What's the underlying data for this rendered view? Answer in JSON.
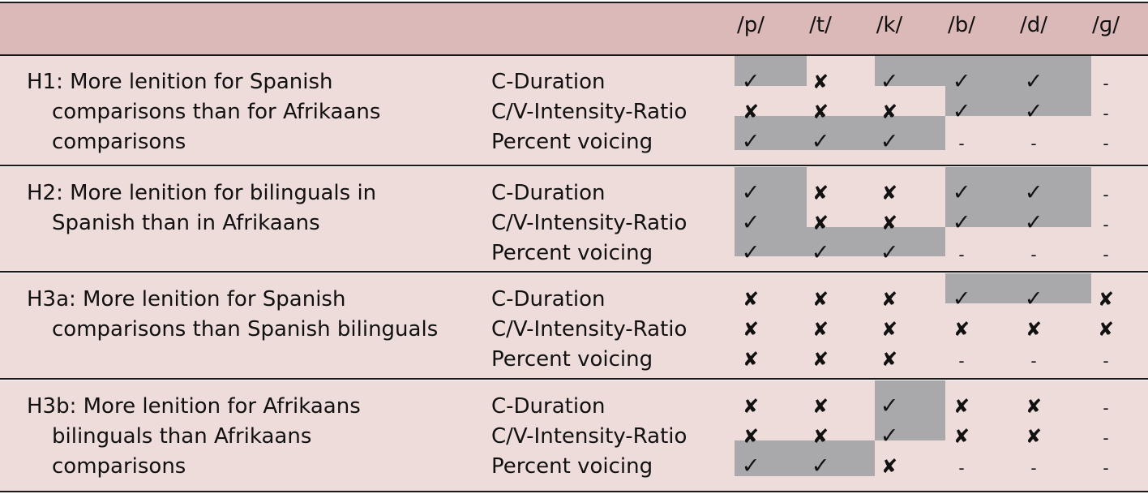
{
  "columns": [
    "/p/",
    "/t/",
    "/k/",
    "/b/",
    "/d/",
    "/ɡ/"
  ],
  "symbols": {
    "yes": "✓",
    "no": "✘",
    "na": "-"
  },
  "colors": {
    "header_bg": "#dbb9b9",
    "body_bg": "#eddcda",
    "highlight": "#a9a9ab",
    "rule": "#1a1a1a"
  },
  "groups": [
    {
      "id": "H1",
      "hypothesis_lines": [
        "H1: More lenition for Spanish",
        "comparisons than for Afrikaans",
        "comparisons"
      ],
      "rows": [
        {
          "measure": "C-Duration",
          "values": [
            "yes",
            "no",
            "yes",
            "yes",
            "yes",
            "na"
          ],
          "highlighted": [
            true,
            false,
            true,
            true,
            true,
            false
          ]
        },
        {
          "measure": "C/V-Intensity-Ratio",
          "values": [
            "no",
            "no",
            "no",
            "yes",
            "yes",
            "na"
          ],
          "highlighted": [
            false,
            false,
            false,
            true,
            true,
            false
          ]
        },
        {
          "measure": "Percent voicing",
          "values": [
            "yes",
            "yes",
            "yes",
            "na",
            "na",
            "na"
          ],
          "highlighted": [
            true,
            true,
            true,
            false,
            false,
            false
          ]
        }
      ]
    },
    {
      "id": "H2",
      "hypothesis_lines": [
        "H2: More lenition for bilinguals in",
        "Spanish than in Afrikaans"
      ],
      "rows": [
        {
          "measure": "C-Duration",
          "values": [
            "yes",
            "no",
            "no",
            "yes",
            "yes",
            "na"
          ],
          "highlighted": [
            true,
            false,
            false,
            true,
            true,
            false
          ]
        },
        {
          "measure": "C/V-Intensity-Ratio",
          "values": [
            "yes",
            "no",
            "no",
            "yes",
            "yes",
            "na"
          ],
          "highlighted": [
            true,
            false,
            false,
            true,
            true,
            false
          ]
        },
        {
          "measure": "Percent voicing",
          "values": [
            "yes",
            "yes",
            "yes",
            "na",
            "na",
            "na"
          ],
          "highlighted": [
            true,
            true,
            true,
            false,
            false,
            false
          ]
        }
      ]
    },
    {
      "id": "H3a",
      "hypothesis_lines": [
        "H3a: More lenition for Spanish",
        "comparisons than Spanish bilinguals"
      ],
      "rows": [
        {
          "measure": "C-Duration",
          "values": [
            "no",
            "no",
            "no",
            "yes",
            "yes",
            "no"
          ],
          "highlighted": [
            false,
            false,
            false,
            true,
            true,
            false
          ]
        },
        {
          "measure": "C/V-Intensity-Ratio",
          "values": [
            "no",
            "no",
            "no",
            "no",
            "no",
            "no"
          ],
          "highlighted": [
            false,
            false,
            false,
            false,
            false,
            false
          ]
        },
        {
          "measure": "Percent voicing",
          "values": [
            "no",
            "no",
            "no",
            "na",
            "na",
            "na"
          ],
          "highlighted": [
            false,
            false,
            false,
            false,
            false,
            false
          ]
        }
      ]
    },
    {
      "id": "H3b",
      "hypothesis_lines": [
        "H3b: More lenition for Afrikaans",
        "bilinguals than Afrikaans",
        "comparisons"
      ],
      "rows": [
        {
          "measure": "C-Duration",
          "values": [
            "no",
            "no",
            "yes",
            "no",
            "no",
            "na"
          ],
          "highlighted": [
            false,
            false,
            true,
            false,
            false,
            false
          ]
        },
        {
          "measure": "C/V-Intensity-Ratio",
          "values": [
            "no",
            "no",
            "yes",
            "no",
            "no",
            "na"
          ],
          "highlighted": [
            false,
            false,
            true,
            false,
            false,
            false
          ]
        },
        {
          "measure": "Percent voicing",
          "values": [
            "yes",
            "yes",
            "no",
            "na",
            "na",
            "na"
          ],
          "highlighted": [
            true,
            true,
            false,
            false,
            false,
            false
          ]
        }
      ]
    }
  ]
}
